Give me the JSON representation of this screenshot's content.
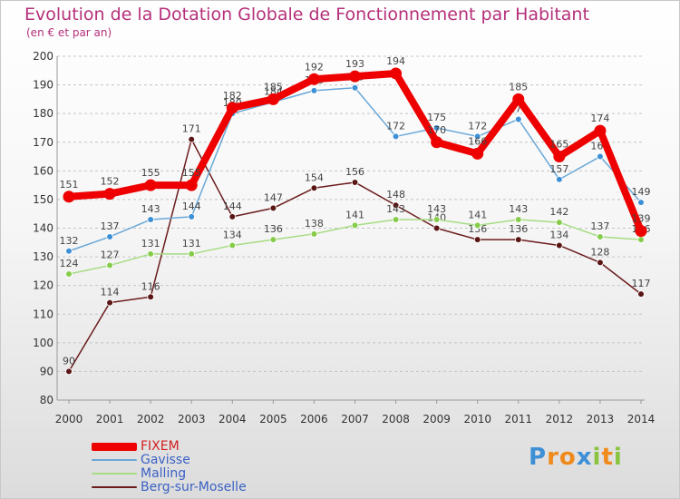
{
  "brand": {
    "letters": [
      {
        "char": "P",
        "color": "#3d8fd6"
      },
      {
        "char": "r",
        "color": "#f08a1c"
      },
      {
        "char": "o",
        "color": "#f08a1c"
      },
      {
        "char": "x",
        "color": "#3d8fd6"
      },
      {
        "char": "i",
        "color": "#8ac43f"
      },
      {
        "char": "t",
        "color": "#f08a1c"
      },
      {
        "char": "i",
        "color": "#8ac43f"
      }
    ]
  },
  "chart_data": {
    "type": "line",
    "title": "Evolution de la Dotation Globale de Fonctionnement par Habitant",
    "subtitle": "(en € et par an)",
    "xlabel": "",
    "ylabel": "",
    "ylim": [
      80,
      200
    ],
    "yticks": [
      80,
      90,
      100,
      110,
      120,
      130,
      140,
      150,
      160,
      170,
      180,
      190,
      200
    ],
    "categories": [
      "2000",
      "2001",
      "2002",
      "2003",
      "2004",
      "2005",
      "2006",
      "2007",
      "2008",
      "2009",
      "2010",
      "2011",
      "2012",
      "2013",
      "2014"
    ],
    "grid": "horizontal dashed",
    "legend_position": "bottom-left",
    "series": [
      {
        "name": "Berg-sur-Moselle",
        "color": "#6b1c1c",
        "marker_color": "#5a1515",
        "emphasis": false,
        "values": [
          90,
          114,
          116,
          171,
          144,
          147,
          154,
          156,
          148,
          140,
          136,
          136,
          134,
          128,
          117
        ]
      },
      {
        "name": "Malling",
        "color": "#a6dc82",
        "marker_color": "#86cc4a",
        "emphasis": false,
        "values": [
          124,
          127,
          131,
          131,
          134,
          136,
          138,
          141,
          143,
          143,
          141,
          143,
          142,
          137,
          136
        ]
      },
      {
        "name": "Gavisse",
        "color": "#6aa8d8",
        "marker_color": "#3d8fd6",
        "emphasis": false,
        "values": [
          132,
          137,
          143,
          144,
          180,
          184,
          188,
          189,
          172,
          175,
          172,
          178,
          157,
          165,
          149
        ]
      },
      {
        "name": "FIXEM",
        "color": "#ee0000",
        "marker_color": "#ee0000",
        "emphasis": true,
        "values": [
          151,
          152,
          155,
          155,
          182,
          185,
          192,
          193,
          194,
          170,
          166,
          185,
          165,
          174,
          139
        ]
      }
    ],
    "legend_order": [
      "FIXEM",
      "Gavisse",
      "Malling",
      "Berg-sur-Moselle"
    ]
  }
}
